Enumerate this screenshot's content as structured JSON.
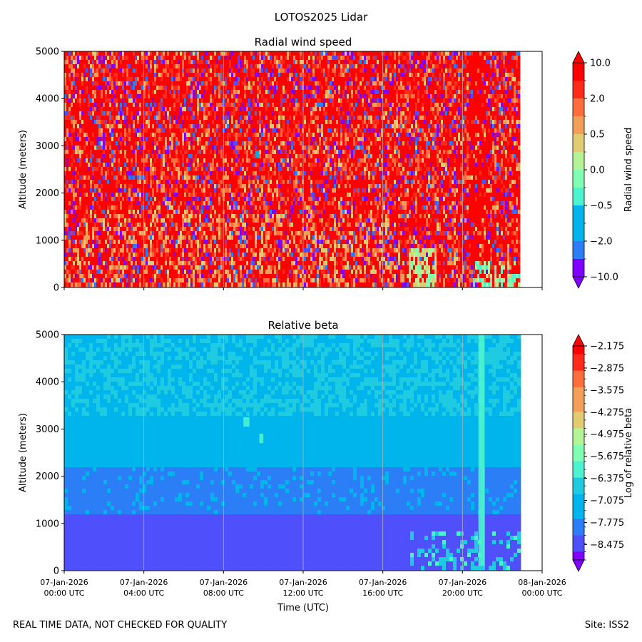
{
  "figure": {
    "title": "LOTOS2025 Lidar",
    "footer_left": "REAL TIME DATA, NOT CHECKED FOR QUALITY",
    "footer_right": "Site: ISS2"
  },
  "colors": {
    "rainbow": [
      "#8000ff",
      "#4f4ffc",
      "#2b7ef6",
      "#00b5eb",
      "#1ecbe1",
      "#4df3ce",
      "#80ffb4",
      "#b4f396",
      "#e1cb73",
      "#f39e59",
      "#ff6d3c",
      "#ff2a1a",
      "#ff0000"
    ],
    "grid": "#b0b0b0"
  },
  "chart_data": [
    {
      "type": "heatmap",
      "id": "wind",
      "title": "Radial wind speed",
      "ylabel": "Altitude (meters)",
      "xlabel": "",
      "ylim": [
        0,
        5000
      ],
      "yticks": [
        0,
        1000,
        2000,
        3000,
        4000,
        5000
      ],
      "xlim_hours": [
        0,
        24
      ],
      "xticks_hours": [
        0,
        4,
        8,
        12,
        16,
        20,
        24
      ],
      "data_end_hour": 22.8,
      "data_min_altitude": 100,
      "colorbar": {
        "label": "Radial wind speed",
        "ticks": [
          "10.0",
          "2.0",
          "0.5",
          "0.0",
          "−0.5",
          "−2.0",
          "−10.0"
        ],
        "range": [
          -10,
          10
        ],
        "extend": "both"
      },
      "features": [
        {
          "name": "cyan patch",
          "hour_range": [
            9.6,
            9.8
          ],
          "alt_range": [
            2750,
            2900
          ]
        },
        {
          "name": "low level yellow-green",
          "hour_range": [
            17.3,
            18.5
          ],
          "alt_range": [
            100,
            900
          ]
        },
        {
          "name": "low level green",
          "hour_range": [
            20.5,
            22.8
          ],
          "alt_range": [
            100,
            600
          ]
        }
      ]
    },
    {
      "type": "heatmap",
      "id": "beta",
      "title": "Relative beta",
      "ylabel": "Altitude (meters)",
      "xlabel": "Time (UTC)",
      "ylim": [
        0,
        5000
      ],
      "yticks": [
        0,
        1000,
        2000,
        3000,
        4000,
        5000
      ],
      "xlim_hours": [
        0,
        24
      ],
      "xticks_hours": [
        0,
        4,
        8,
        12,
        16,
        20,
        24
      ],
      "xtick_labels": [
        [
          "07-Jan-2026",
          "00:00 UTC"
        ],
        [
          "07-Jan-2026",
          "04:00 UTC"
        ],
        [
          "07-Jan-2026",
          "08:00 UTC"
        ],
        [
          "07-Jan-2026",
          "12:00 UTC"
        ],
        [
          "07-Jan-2026",
          "16:00 UTC"
        ],
        [
          "07-Jan-2026",
          "20:00 UTC"
        ],
        [
          "08-Jan-2026",
          "00:00 UTC"
        ]
      ],
      "data_end_hour": 22.8,
      "data_min_altitude": 100,
      "colorbar": {
        "label": "Log of relative beta",
        "ticks": [
          "−2.175",
          "−2.875",
          "−3.575",
          "−4.275",
          "−4.975",
          "−5.675",
          "−6.375",
          "−7.075",
          "−7.775",
          "−8.475"
        ],
        "range": [
          -9.0,
          -1.9
        ],
        "extend": "both"
      },
      "features": [
        {
          "name": "aerosol blob 1",
          "hour_range": [
            9.0,
            9.3
          ],
          "alt_range": [
            3050,
            3250
          ]
        },
        {
          "name": "aerosol blob 2",
          "hour_range": [
            9.8,
            10.0
          ],
          "alt_range": [
            2700,
            2900
          ]
        },
        {
          "name": "vertical streak",
          "hour_range": [
            20.8,
            21.1
          ],
          "alt_range": [
            100,
            5000
          ]
        },
        {
          "name": "low level enhancement",
          "hour_range": [
            17.3,
            22.8
          ],
          "alt_range": [
            100,
            900
          ]
        }
      ]
    }
  ]
}
